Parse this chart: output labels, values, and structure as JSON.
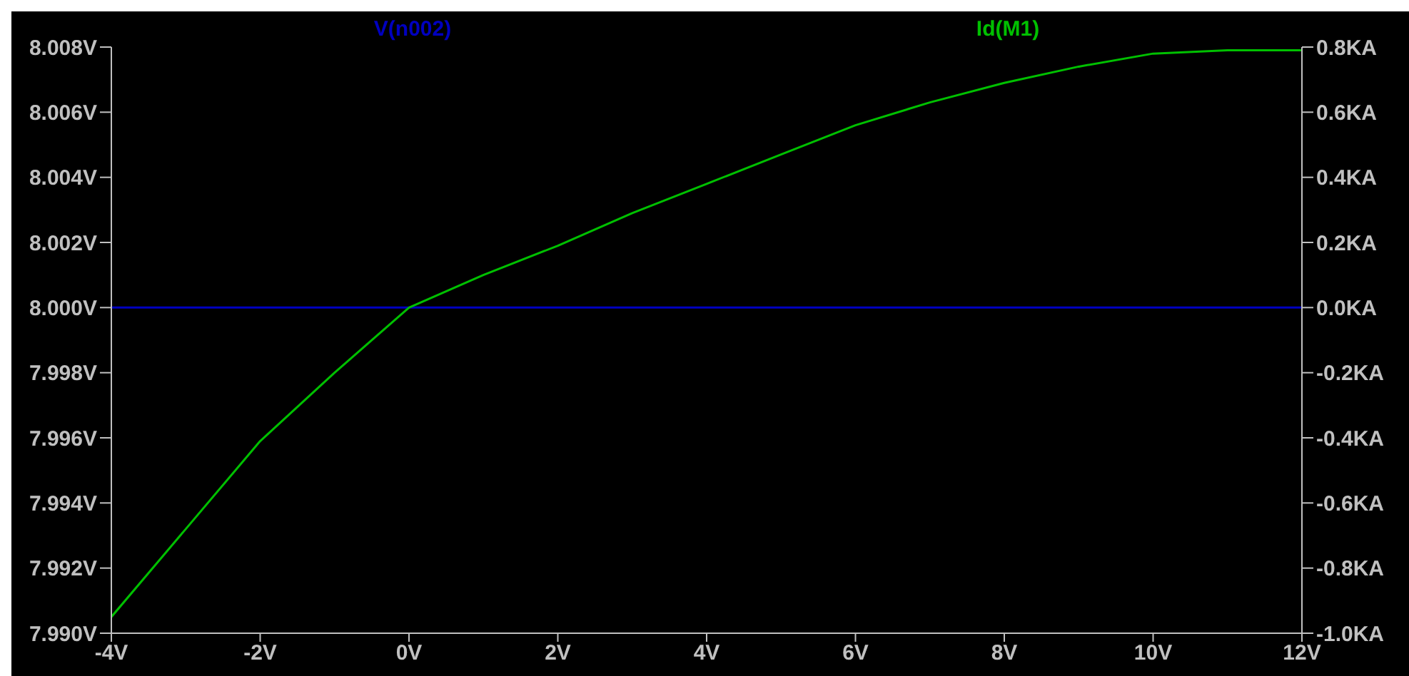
{
  "chart_data": {
    "type": "line",
    "xlim": [
      -4,
      12
    ],
    "xticks": [
      {
        "value": -4,
        "label": "-4V"
      },
      {
        "value": -2,
        "label": "-2V"
      },
      {
        "value": 0,
        "label": "0V"
      },
      {
        "value": 2,
        "label": "2V"
      },
      {
        "value": 4,
        "label": "4V"
      },
      {
        "value": 6,
        "label": "6V"
      },
      {
        "value": 8,
        "label": "8V"
      },
      {
        "value": 10,
        "label": "10V"
      },
      {
        "value": 12,
        "label": "12V"
      }
    ],
    "ylim": [
      7.99,
      8.008
    ],
    "yticks": [
      {
        "value": 7.99,
        "label": "7.990V"
      },
      {
        "value": 7.992,
        "label": "7.992V"
      },
      {
        "value": 7.994,
        "label": "7.994V"
      },
      {
        "value": 7.996,
        "label": "7.996V"
      },
      {
        "value": 7.998,
        "label": "7.998V"
      },
      {
        "value": 8.0,
        "label": "8.000V"
      },
      {
        "value": 8.002,
        "label": "8.002V"
      },
      {
        "value": 8.004,
        "label": "8.004V"
      },
      {
        "value": 8.006,
        "label": "8.006V"
      },
      {
        "value": 8.008,
        "label": "8.008V"
      }
    ],
    "y2lim": [
      -1.0,
      0.8
    ],
    "y2ticks": [
      {
        "value": -1.0,
        "label": "-1.0KA"
      },
      {
        "value": -0.8,
        "label": "-0.8KA"
      },
      {
        "value": -0.6,
        "label": "-0.6KA"
      },
      {
        "value": -0.4,
        "label": "-0.4KA"
      },
      {
        "value": -0.2,
        "label": "-0.2KA"
      },
      {
        "value": 0,
        "label": "0.0KA"
      },
      {
        "value": 0.2,
        "label": "0.2KA"
      },
      {
        "value": 0.4,
        "label": "0.4KA"
      },
      {
        "value": 0.6,
        "label": "0.6KA"
      },
      {
        "value": 0.8,
        "label": "0.8KA"
      }
    ],
    "series": [
      {
        "name": "V(n002)",
        "color": "#0000c0",
        "x": [
          -4,
          12
        ],
        "values": [
          8.0,
          8.0
        ]
      },
      {
        "name": "Id(M1)",
        "color": "#00c000",
        "axis": "y2",
        "x": [
          -4,
          -3,
          -2,
          -1,
          0,
          1,
          2,
          3,
          4,
          5,
          6,
          7,
          8,
          9,
          10,
          11,
          12
        ],
        "values": [
          -0.95,
          -0.68,
          -0.41,
          -0.2,
          0,
          0.1,
          0.19,
          0.29,
          0.38,
          0.47,
          0.56,
          0.63,
          0.69,
          0.74,
          0.78,
          0.79,
          0.79
        ]
      }
    ],
    "legend": "top",
    "marker": "none",
    "line_style": "solid"
  }
}
